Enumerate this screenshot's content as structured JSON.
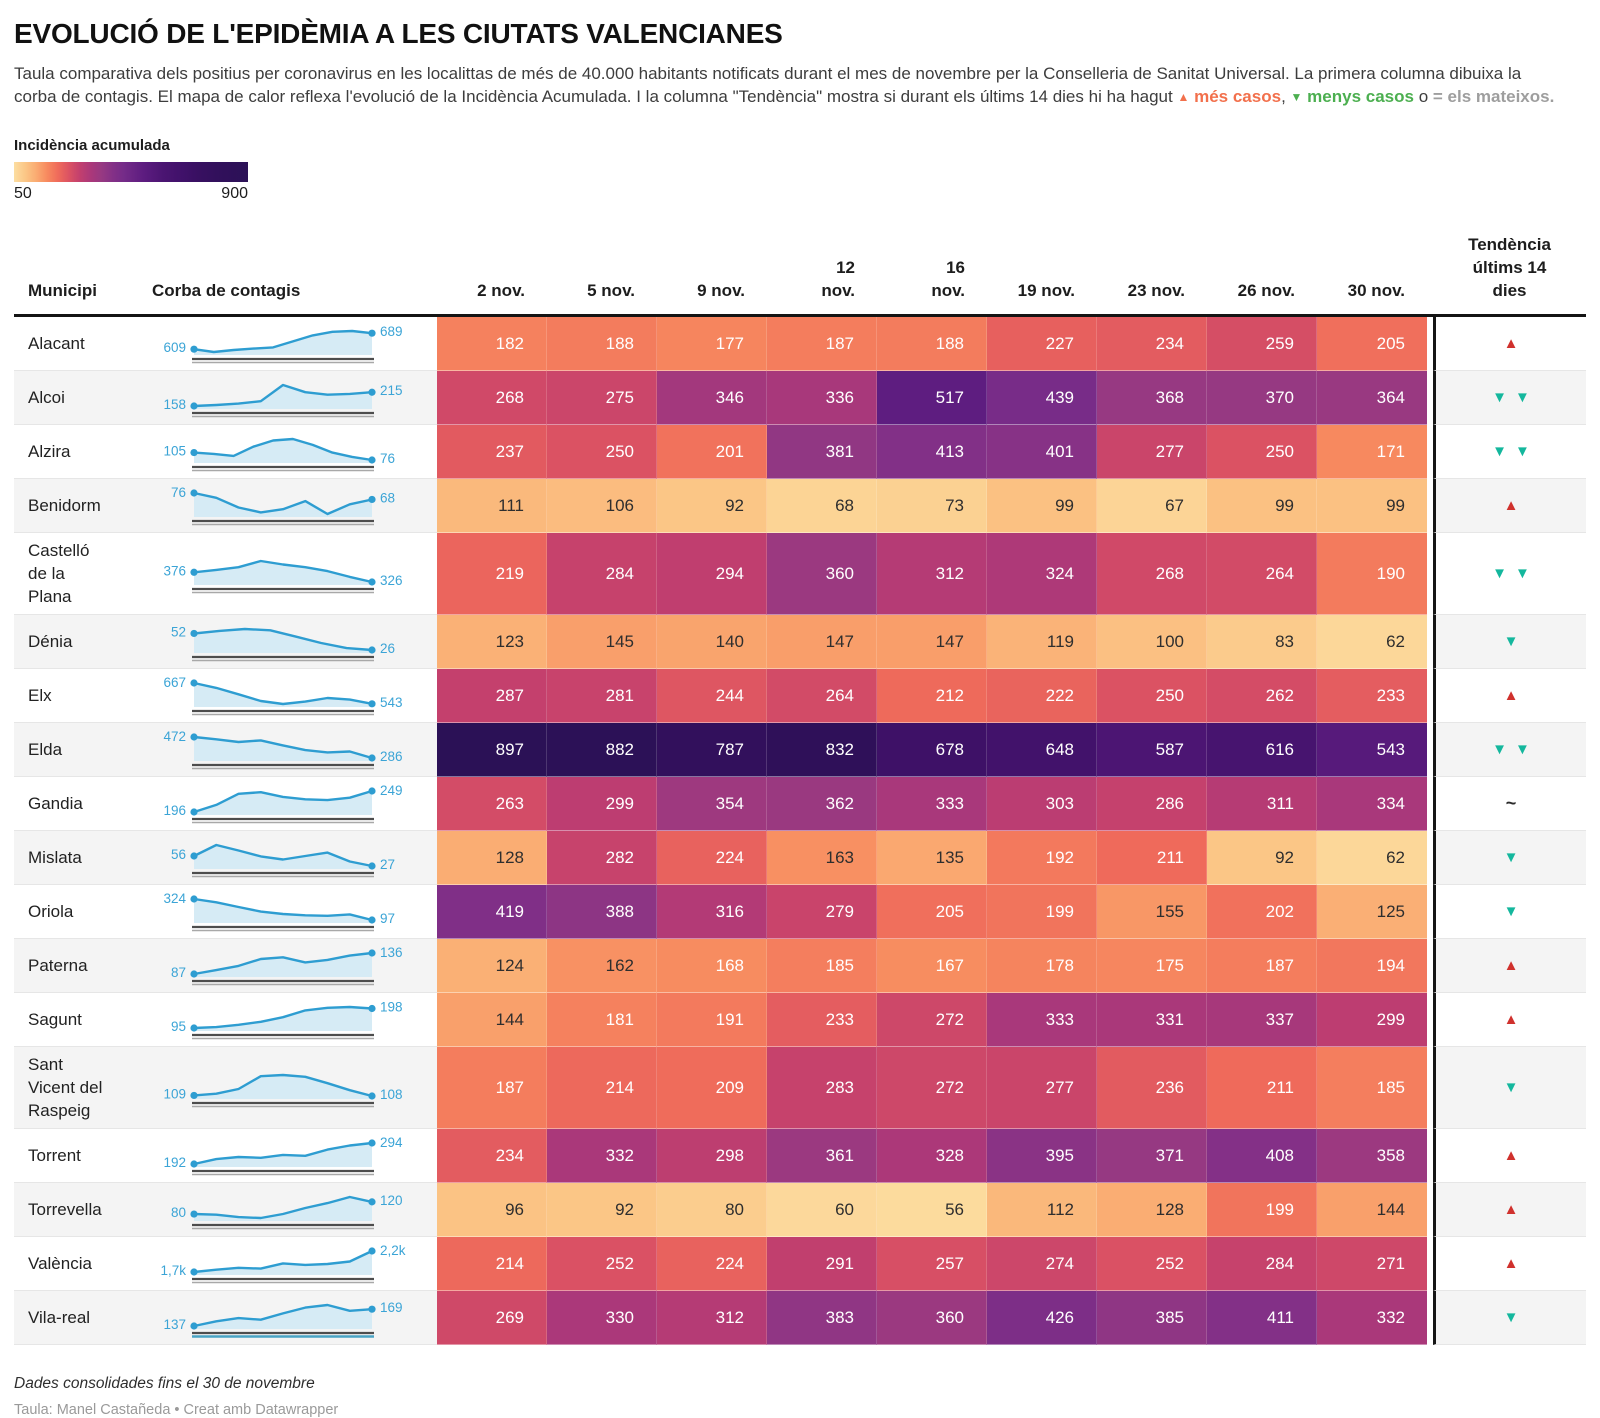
{
  "title": "EVOLUCIÓ DE L'EPIDÈMIA A LES CIUTATS VALENCIANES",
  "intro": {
    "text": "Taula comparativa dels positius per coronavirus en les localittas de més de 40.000 habitants notificats durant el mes de novembre per la Conselleria de Sanitat Universal. La primera columna dibuixa la corba de contagis. El mapa de calor reflexa l'evolució de la Incidència Acumulada. I la columna \"Tendència\" mostra si durant els últims 14 dies hi ha hagut",
    "up_glyph": "▲",
    "more_label": "més casos",
    "separator": ",",
    "down_glyph": "▼",
    "less_label": "menys casos",
    "or_label": "o",
    "same_label": "= els mateixos."
  },
  "legend": {
    "title": "Incidència acumulada",
    "min_label": "50",
    "max_label": "900"
  },
  "scale": {
    "domain": [
      50,
      90,
      130,
      170,
      210,
      250,
      290,
      330,
      370,
      410,
      450,
      520,
      590,
      660,
      730,
      800,
      900
    ],
    "colors": [
      "#fcdea1",
      "#fbc787",
      "#faac72",
      "#f78a5f",
      "#ef6b5b",
      "#db5263",
      "#c23f6e",
      "#ab387a",
      "#963982",
      "#833087",
      "#742b88",
      "#5d1c80",
      "#4b1572",
      "#40116a",
      "#371060",
      "#31105b",
      "#2b1156"
    ],
    "text_flip_value": 165,
    "text_dark": "#2e2e2e",
    "text_light": "#ffffff"
  },
  "columns": {
    "municipi": "Municipi",
    "corba": "Corba de contagis",
    "dates": [
      "2 nov.",
      "5 nov.",
      "9 nov.",
      "12\nnov.",
      "16\nnov.",
      "19 nov.",
      "23 nov.",
      "26 nov.",
      "30 nov."
    ],
    "trend": "Tendència\núltims 14\ndies"
  },
  "trend": {
    "up_glyph": "▲",
    "down_glyph": "▼",
    "same_glyph": "~",
    "up_color": "#d0312d",
    "down_color": "#14b79d",
    "same_color": "#2b2b2b"
  },
  "spark_style": {
    "line": "#2e9dd1",
    "fill": "#d6ebf5",
    "label": "#3ba4d6",
    "axis": "#4d4d4d",
    "axis2": "#a8a8a8",
    "axis2_highlight": "#4aa3c4"
  },
  "chart_data": {
    "type": "heatmap",
    "title": "EVOLUCIÓ DE L'EPIDÈMIA A LES CIUTATS VALENCIANES",
    "value_range": [
      50,
      900
    ],
    "date_columns": [
      "2 nov.",
      "5 nov.",
      "9 nov.",
      "12 nov.",
      "16 nov.",
      "19 nov.",
      "23 nov.",
      "26 nov.",
      "30 nov."
    ],
    "rows": [
      {
        "municipi": "Alacant",
        "spark_start_label": "609",
        "spark_end_label": "689",
        "spark": [
          609,
          595,
          605,
          612,
          618,
          648,
          678,
          696,
          700,
          689
        ],
        "values": [
          182,
          188,
          177,
          187,
          188,
          227,
          234,
          259,
          205
        ],
        "trend": "up"
      },
      {
        "municipi": "Alcoi",
        "spark_start_label": "158",
        "spark_end_label": "215",
        "spark": [
          158,
          162,
          168,
          178,
          245,
          215,
          205,
          208,
          215
        ],
        "values": [
          268,
          275,
          346,
          336,
          517,
          439,
          368,
          370,
          364
        ],
        "trend": "down2"
      },
      {
        "municipi": "Alzira",
        "spark_start_label": "105",
        "spark_end_label": "76",
        "spark": [
          105,
          100,
          92,
          128,
          152,
          158,
          135,
          105,
          88,
          76
        ],
        "values": [
          237,
          250,
          201,
          381,
          413,
          401,
          277,
          250,
          171
        ],
        "trend": "down2"
      },
      {
        "municipi": "Benidorm",
        "spark_start_label": "76",
        "spark_end_label": "68",
        "spark": [
          76,
          70,
          58,
          52,
          56,
          66,
          50,
          62,
          68
        ],
        "values": [
          111,
          106,
          92,
          68,
          73,
          99,
          67,
          99,
          99
        ],
        "trend": "up"
      },
      {
        "municipi": "Castelló de la Plana",
        "label": "Castelló\nde la\nPlana",
        "spark_start_label": "376",
        "spark_end_label": "326",
        "spark": [
          376,
          388,
          402,
          434,
          416,
          402,
          382,
          352,
          326
        ],
        "values": [
          219,
          284,
          294,
          360,
          312,
          324,
          268,
          264,
          190
        ],
        "trend": "down2"
      },
      {
        "municipi": "Dénia",
        "spark_start_label": "52",
        "spark_end_label": "26",
        "spark": [
          52,
          56,
          59,
          57,
          47,
          37,
          29,
          26
        ],
        "values": [
          123,
          145,
          140,
          147,
          147,
          119,
          100,
          83,
          62
        ],
        "trend": "down"
      },
      {
        "municipi": "Elx",
        "spark_start_label": "667",
        "spark_end_label": "543",
        "spark": [
          667,
          638,
          600,
          560,
          542,
          556,
          578,
          568,
          543
        ],
        "values": [
          287,
          281,
          244,
          264,
          212,
          222,
          250,
          262,
          233
        ],
        "trend": "up"
      },
      {
        "municipi": "Elda",
        "spark_start_label": "472",
        "spark_end_label": "286",
        "spark": [
          472,
          452,
          428,
          442,
          398,
          356,
          336,
          344,
          286
        ],
        "values": [
          897,
          882,
          787,
          832,
          678,
          648,
          587,
          616,
          543
        ],
        "trend": "down2"
      },
      {
        "municipi": "Gandia",
        "spark_start_label": "196",
        "spark_end_label": "249",
        "spark": [
          196,
          214,
          242,
          246,
          234,
          228,
          226,
          232,
          249
        ],
        "values": [
          263,
          299,
          354,
          362,
          333,
          303,
          286,
          311,
          334
        ],
        "trend": "same"
      },
      {
        "municipi": "Mislata",
        "spark_start_label": "56",
        "spark_end_label": "27",
        "spark": [
          56,
          88,
          72,
          55,
          46,
          56,
          66,
          40,
          27
        ],
        "values": [
          128,
          282,
          224,
          163,
          135,
          192,
          211,
          92,
          62
        ],
        "trend": "down"
      },
      {
        "municipi": "Oriola",
        "spark_start_label": "324",
        "spark_end_label": "97",
        "spark": [
          324,
          288,
          238,
          188,
          162,
          148,
          142,
          158,
          97
        ],
        "values": [
          419,
          388,
          316,
          279,
          205,
          199,
          155,
          202,
          125
        ],
        "trend": "down"
      },
      {
        "municipi": "Paterna",
        "spark_start_label": "87",
        "spark_end_label": "136",
        "spark": [
          87,
          96,
          106,
          122,
          126,
          114,
          120,
          130,
          136
        ],
        "values": [
          124,
          162,
          168,
          185,
          167,
          178,
          175,
          187,
          194
        ],
        "trend": "up"
      },
      {
        "municipi": "Sagunt",
        "spark_start_label": "95",
        "spark_end_label": "198",
        "spark": [
          95,
          100,
          112,
          128,
          152,
          188,
          202,
          206,
          198
        ],
        "values": [
          144,
          181,
          191,
          233,
          272,
          333,
          331,
          337,
          299
        ],
        "trend": "up"
      },
      {
        "municipi": "Sant Vicent del Raspeig",
        "label": "Sant\nVicent del\nRaspeig",
        "spark_start_label": "109",
        "spark_end_label": "108",
        "spark": [
          109,
          112,
          120,
          142,
          144,
          141,
          130,
          118,
          108
        ],
        "values": [
          187,
          214,
          209,
          283,
          272,
          277,
          236,
          211,
          185
        ],
        "trend": "down"
      },
      {
        "municipi": "Torrent",
        "spark_start_label": "192",
        "spark_end_label": "294",
        "spark": [
          192,
          216,
          226,
          222,
          236,
          232,
          262,
          282,
          294
        ],
        "values": [
          234,
          332,
          298,
          361,
          328,
          395,
          371,
          408,
          358
        ],
        "trend": "up"
      },
      {
        "municipi": "Torrevella",
        "spark_start_label": "80",
        "spark_end_label": "120",
        "spark": [
          80,
          78,
          70,
          67,
          80,
          100,
          116,
          136,
          120
        ],
        "values": [
          96,
          92,
          80,
          60,
          56,
          112,
          128,
          199,
          144
        ],
        "trend": "up"
      },
      {
        "municipi": "València",
        "spark_start_label": "1,7k",
        "spark_end_label": "2,2k",
        "spark": [
          1700,
          1755,
          1800,
          1780,
          1905,
          1870,
          1890,
          1950,
          2200
        ],
        "values": [
          214,
          252,
          224,
          291,
          257,
          274,
          252,
          284,
          271
        ],
        "trend": "up"
      },
      {
        "municipi": "Vila-real",
        "spark_start_label": "137",
        "spark_end_label": "169",
        "spark": [
          137,
          146,
          152,
          149,
          161,
          172,
          177,
          166,
          169
        ],
        "values": [
          269,
          330,
          312,
          383,
          360,
          426,
          385,
          411,
          332
        ],
        "trend": "down",
        "axis_highlight": true
      }
    ]
  },
  "footer": {
    "note": "Dades consolidades fins el 30 de novembre",
    "credit": "Taula: Manel Castañeda • Creat amb Datawrapper"
  }
}
